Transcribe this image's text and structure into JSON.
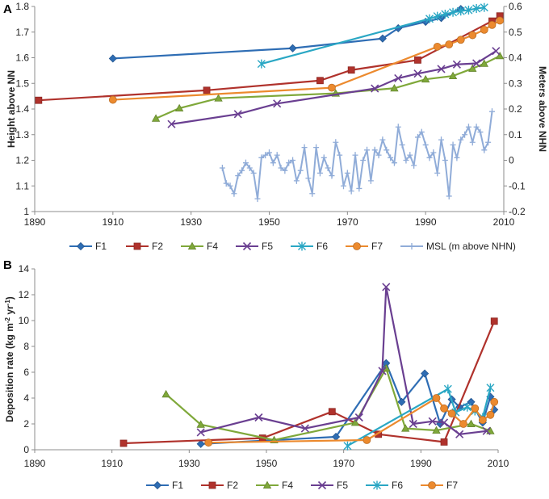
{
  "colors": {
    "F1": "#2e6db4",
    "F2": "#b0322c",
    "F4": "#7fa83a",
    "F5": "#6a3f91",
    "F6": "#2aa7c4",
    "F7": "#ec8a2e",
    "MSL": "#90acd8"
  },
  "chart_data": [
    {
      "panel": "A",
      "type": "line",
      "xlim": [
        1890,
        2010
      ],
      "x_ticks": [
        1890,
        1910,
        1930,
        1950,
        1970,
        1990,
        2010
      ],
      "ylabel": "Height above NN",
      "ylim": [
        1,
        1.8
      ],
      "y_ticks": [
        "1",
        "1.1",
        "1.2",
        "1.3",
        "1.4",
        "1.5",
        "1.6",
        "1.7",
        "1.8"
      ],
      "y2label": "Meters above NHN",
      "y2lim": [
        -0.2,
        0.6
      ],
      "y2_ticks": [
        "-0.2",
        "-0.1",
        "0",
        "0.1",
        "0.2",
        "0.3",
        "0.4",
        "0.5",
        "0.6"
      ],
      "series": [
        {
          "name": "F1",
          "marker": "diamond",
          "axis": "left",
          "x": [
            1910,
            1956,
            1979,
            1983,
            1990,
            1994,
            1999
          ],
          "y": [
            1.597,
            1.637,
            1.675,
            1.715,
            1.74,
            1.755,
            1.79
          ]
        },
        {
          "name": "F2",
          "marker": "square",
          "axis": "left",
          "x": [
            1891,
            1934,
            1963,
            1971,
            1988,
            2007,
            2009
          ],
          "y": [
            1.434,
            1.473,
            1.511,
            1.552,
            1.591,
            1.743,
            1.763
          ]
        },
        {
          "name": "F4",
          "marker": "triangle",
          "axis": "left",
          "x": [
            1921,
            1927,
            1937,
            1967,
            1982,
            1990,
            1997,
            2002,
            2005,
            2009
          ],
          "y": [
            1.363,
            1.403,
            1.442,
            1.461,
            1.481,
            1.516,
            1.529,
            1.558,
            1.577,
            1.607
          ]
        },
        {
          "name": "F5",
          "marker": "x",
          "axis": "left",
          "x": [
            1925,
            1942,
            1952,
            1977,
            1983,
            1988,
            1994,
            1998,
            2003,
            2008
          ],
          "y": [
            1.341,
            1.38,
            1.421,
            1.48,
            1.52,
            1.538,
            1.556,
            1.574,
            1.578,
            1.626
          ]
        },
        {
          "name": "F6",
          "marker": "asterisk",
          "axis": "left",
          "x": [
            1948,
            1991,
            1993,
            1995,
            1997,
            1999,
            2001,
            2003,
            2005
          ],
          "y": [
            1.576,
            1.752,
            1.762,
            1.77,
            1.777,
            1.782,
            1.786,
            1.792,
            1.796
          ]
        },
        {
          "name": "F7",
          "marker": "circle",
          "axis": "left",
          "x": [
            1910,
            1966,
            1993,
            1996,
            1999,
            2002,
            2005,
            2007,
            2009
          ],
          "y": [
            1.436,
            1.483,
            1.643,
            1.652,
            1.67,
            1.688,
            1.709,
            1.728,
            1.745
          ]
        },
        {
          "name": "MSL (m above NHN)",
          "marker": "plus",
          "axis": "right",
          "x": [
            1938,
            1939,
            1940,
            1941,
            1942,
            1943,
            1944,
            1945,
            1946,
            1947,
            1948,
            1949,
            1950,
            1951,
            1952,
            1953,
            1954,
            1955,
            1956,
            1957,
            1958,
            1959,
            1960,
            1961,
            1962,
            1963,
            1964,
            1965,
            1966,
            1967,
            1968,
            1969,
            1970,
            1971,
            1972,
            1973,
            1974,
            1975,
            1976,
            1977,
            1978,
            1979,
            1980,
            1981,
            1982,
            1983,
            1984,
            1985,
            1986,
            1987,
            1988,
            1989,
            1990,
            1991,
            1992,
            1993,
            1994,
            1995,
            1996,
            1997,
            1998,
            1999,
            2000,
            2001,
            2002,
            2003,
            2004,
            2005,
            2006,
            2007
          ],
          "y": [
            -0.03,
            -0.09,
            -0.1,
            -0.13,
            -0.06,
            -0.04,
            -0.01,
            -0.03,
            -0.05,
            -0.15,
            0.01,
            0.02,
            0.03,
            -0.01,
            0.02,
            -0.03,
            -0.04,
            -0.01,
            0.0,
            -0.08,
            -0.04,
            0.05,
            -0.07,
            -0.13,
            0.05,
            -0.05,
            0.01,
            -0.03,
            -0.06,
            0.07,
            0.02,
            -0.1,
            -0.05,
            -0.12,
            0.02,
            -0.11,
            0.0,
            0.04,
            -0.08,
            0.04,
            0.02,
            0.08,
            0.04,
            0.01,
            -0.01,
            0.13,
            0.06,
            0.0,
            0.02,
            -0.02,
            0.09,
            0.11,
            0.06,
            0.01,
            0.03,
            -0.05,
            0.08,
            0.0,
            -0.14,
            0.06,
            0.01,
            0.08,
            0.1,
            0.13,
            0.07,
            0.13,
            0.11,
            0.04,
            0.07,
            0.19
          ]
        }
      ],
      "legend": [
        "F1",
        "F2",
        "F4",
        "F5",
        "F6",
        "F7",
        "MSL (m above NHN)"
      ]
    },
    {
      "panel": "B",
      "type": "line",
      "xlim": [
        1890,
        2010
      ],
      "x_ticks": [
        1890,
        1910,
        1930,
        1950,
        1970,
        1990,
        2010
      ],
      "ylim": [
        0,
        14
      ],
      "y_ticks": [
        "0",
        "2",
        "4",
        "6",
        "8",
        "10",
        "12",
        "14"
      ],
      "ylabel_parts": [
        "Deposition rate (kg m",
        "-2",
        " yr",
        "-1",
        ")"
      ],
      "series": [
        {
          "name": "F1",
          "marker": "diamond",
          "x": [
            1933,
            1968,
            1981,
            1985,
            1991,
            1995,
            1998,
            2000,
            2003,
            2006,
            2008,
            2009
          ],
          "y": [
            0.45,
            1.0,
            6.7,
            3.7,
            5.9,
            2.0,
            3.9,
            3.3,
            3.7,
            2.1,
            4.1,
            3.1
          ]
        },
        {
          "name": "F2",
          "marker": "square",
          "x": [
            1913,
            1949,
            1967,
            1979,
            1996,
            2009
          ],
          "y": [
            0.5,
            0.9,
            2.95,
            1.2,
            0.6,
            9.95
          ]
        },
        {
          "name": "F4",
          "marker": "triangle",
          "x": [
            1924,
            1933,
            1952,
            1973,
            1981,
            1986,
            1994,
            2003,
            2008
          ],
          "y": [
            4.3,
            1.95,
            0.75,
            2.1,
            6.3,
            1.65,
            1.5,
            2.0,
            1.45
          ]
        },
        {
          "name": "F5",
          "marker": "x",
          "x": [
            1933,
            1948,
            1960,
            1974,
            1980,
            1981,
            1988,
            1993,
            1996,
            2000,
            2007
          ],
          "y": [
            1.35,
            2.5,
            1.65,
            2.5,
            6.1,
            12.6,
            2.0,
            2.2,
            2.1,
            1.2,
            1.45
          ]
        },
        {
          "name": "F6",
          "marker": "asterisk",
          "x": [
            1971,
            1997,
            1999,
            2002,
            2004,
            2006,
            2008
          ],
          "y": [
            0.3,
            4.7,
            2.9,
            3.3,
            3.0,
            2.5,
            4.8
          ]
        },
        {
          "name": "F7",
          "marker": "circle",
          "x": [
            1935,
            1976,
            1994,
            1996,
            1998,
            2001,
            2004,
            2006,
            2008,
            2009
          ],
          "y": [
            0.55,
            0.75,
            4.0,
            3.2,
            2.8,
            2.0,
            3.2,
            2.3,
            2.7,
            3.7
          ]
        }
      ],
      "legend": [
        "F1",
        "F2",
        "F4",
        "F5",
        "F6",
        "F7"
      ]
    }
  ]
}
